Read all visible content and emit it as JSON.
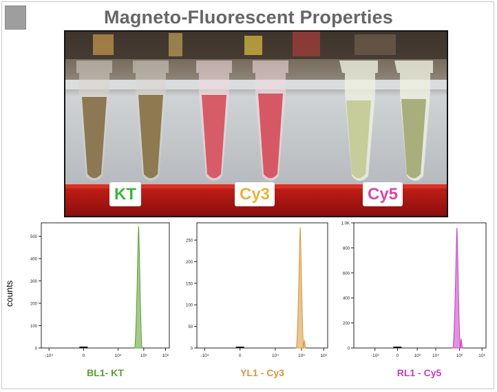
{
  "title": "Magneto-Fluorescent Properties",
  "photo": {
    "tube_labels": [
      {
        "text": "KT",
        "color": "#3cb43c"
      },
      {
        "text": "Cy3",
        "color": "#e8b23a"
      },
      {
        "text": "Cy5",
        "color": "#d848a8"
      }
    ]
  },
  "chart_data": [
    {
      "type": "area",
      "ylabel": "counts",
      "xlabel": "BL1- KT",
      "color": "#5a9e32",
      "ylim": [
        0,
        560
      ],
      "yticks": [
        0,
        100,
        200,
        300,
        400,
        500
      ],
      "xticks": [
        "-10⁴",
        "0",
        "10⁴",
        "10⁵",
        "10⁶"
      ],
      "peak": {
        "x": "between 10⁴ and 10⁵",
        "y": 545
      }
    },
    {
      "type": "area",
      "ylabel": "",
      "xlabel": "YL1 - Cy3",
      "color": "#d6963a",
      "ylim": [
        0,
        290
      ],
      "yticks": [
        0,
        50,
        100,
        150,
        200,
        250
      ],
      "xticks": [
        "-10⁴",
        "0",
        "10⁴",
        "10⁵",
        "10⁶"
      ],
      "peak": {
        "x": "≈10⁵",
        "y": 280
      }
    },
    {
      "type": "area",
      "ylabel": "",
      "xlabel": "RL1 - Cy5",
      "color": "#c83cc0",
      "ylim": [
        0,
        1000
      ],
      "yticks": [
        "0",
        "200",
        "400",
        "600",
        "800",
        "1.0K"
      ],
      "xticks": [
        "-10³",
        "0",
        "10³",
        "10⁴",
        "10⁵",
        "10⁶"
      ],
      "peak": {
        "x": "between 10⁴ and 10⁵",
        "y": 960
      }
    }
  ]
}
